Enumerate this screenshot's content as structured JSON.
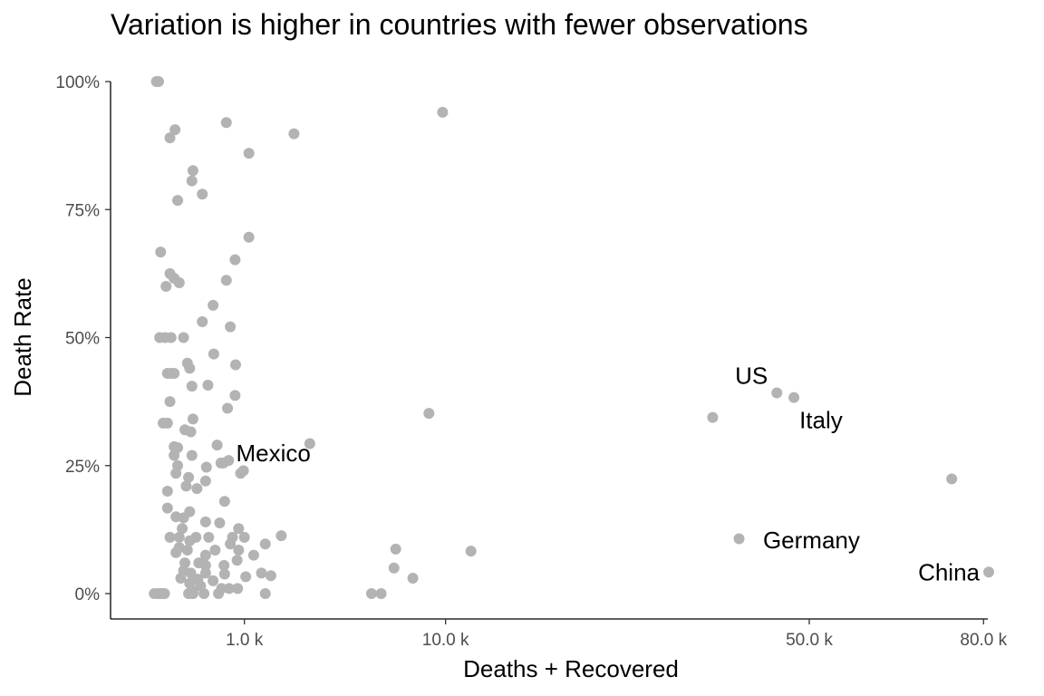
{
  "chart_data": {
    "type": "scatter",
    "title": "Variation is higher in countries with fewer observations",
    "xlabel": "Deaths + Recovered",
    "ylabel": "Death Rate",
    "x_scale": "sqrt",
    "xlim": [
      0,
      81200
    ],
    "ylim": [
      0,
      1
    ],
    "x_ticks": [
      {
        "value": 1000,
        "label": "1.0 k"
      },
      {
        "value": 10000,
        "label": "10.0 k"
      },
      {
        "value": 50000,
        "label": "50.0 k"
      },
      {
        "value": 80000,
        "label": "80.0 k"
      }
    ],
    "y_ticks": [
      {
        "value": 0,
        "label": "0%"
      },
      {
        "value": 0.25,
        "label": "25%"
      },
      {
        "value": 0.5,
        "label": "50%"
      },
      {
        "value": 0.75,
        "label": "75%"
      },
      {
        "value": 1.0,
        "label": "100%"
      }
    ],
    "grid": false,
    "point_color": "#b3b3b3",
    "points": [
      {
        "x": 3,
        "y": 1.0
      },
      {
        "x": 6,
        "y": 1.0
      },
      {
        "x": 650,
        "y": 0.92
      },
      {
        "x": 65,
        "y": 0.906
      },
      {
        "x": 40,
        "y": 0.89
      },
      {
        "x": 1100,
        "y": 0.86
      },
      {
        "x": 2350,
        "y": 0.898
      },
      {
        "x": 9800,
        "y": 0.94
      },
      {
        "x": 200,
        "y": 0.826
      },
      {
        "x": 190,
        "y": 0.806
      },
      {
        "x": 300,
        "y": 0.78
      },
      {
        "x": 80,
        "y": 0.768
      },
      {
        "x": 1100,
        "y": 0.696
      },
      {
        "x": 10,
        "y": 0.667
      },
      {
        "x": 810,
        "y": 0.652
      },
      {
        "x": 40,
        "y": 0.625
      },
      {
        "x": 60,
        "y": 0.616
      },
      {
        "x": 90,
        "y": 0.607
      },
      {
        "x": 25,
        "y": 0.6
      },
      {
        "x": 650,
        "y": 0.612
      },
      {
        "x": 440,
        "y": 0.563
      },
      {
        "x": 300,
        "y": 0.531
      },
      {
        "x": 720,
        "y": 0.521
      },
      {
        "x": 8,
        "y": 0.5
      },
      {
        "x": 22,
        "y": 0.5
      },
      {
        "x": 45,
        "y": 0.5
      },
      {
        "x": 120,
        "y": 0.5
      },
      {
        "x": 450,
        "y": 0.468
      },
      {
        "x": 150,
        "y": 0.45
      },
      {
        "x": 170,
        "y": 0.44
      },
      {
        "x": 820,
        "y": 0.447
      },
      {
        "x": 30,
        "y": 0.43
      },
      {
        "x": 45,
        "y": 0.43
      },
      {
        "x": 60,
        "y": 0.43
      },
      {
        "x": 190,
        "y": 0.405
      },
      {
        "x": 370,
        "y": 0.407
      },
      {
        "x": 810,
        "y": 0.387
      },
      {
        "x": 40,
        "y": 0.375
      },
      {
        "x": 670,
        "y": 0.362
      },
      {
        "x": 8900,
        "y": 0.352
      },
      {
        "x": 16,
        "y": 0.333
      },
      {
        "x": 30,
        "y": 0.333
      },
      {
        "x": 200,
        "y": 0.341
      },
      {
        "x": 130,
        "y": 0.32
      },
      {
        "x": 180,
        "y": 0.316
      },
      {
        "x": 80,
        "y": 0.285
      },
      {
        "x": 60,
        "y": 0.287
      },
      {
        "x": 500,
        "y": 0.29
      },
      {
        "x": 2900,
        "y": 0.293
      },
      {
        "x": 190,
        "y": 0.27
      },
      {
        "x": 60,
        "y": 0.27
      },
      {
        "x": 560,
        "y": 0.255
      },
      {
        "x": 690,
        "y": 0.26
      },
      {
        "x": 980,
        "y": 0.24
      },
      {
        "x": 80,
        "y": 0.25
      },
      {
        "x": 350,
        "y": 0.247
      },
      {
        "x": 70,
        "y": 0.235
      },
      {
        "x": 920,
        "y": 0.235
      },
      {
        "x": 160,
        "y": 0.227
      },
      {
        "x": 340,
        "y": 0.22
      },
      {
        "x": 140,
        "y": 0.21
      },
      {
        "x": 240,
        "y": 0.205
      },
      {
        "x": 30,
        "y": 0.2
      },
      {
        "x": 620,
        "y": 0.18
      },
      {
        "x": 30,
        "y": 0.167
      },
      {
        "x": 170,
        "y": 0.16
      },
      {
        "x": 70,
        "y": 0.15
      },
      {
        "x": 120,
        "y": 0.148
      },
      {
        "x": 340,
        "y": 0.14
      },
      {
        "x": 540,
        "y": 0.138
      },
      {
        "x": 110,
        "y": 0.127
      },
      {
        "x": 880,
        "y": 0.127
      },
      {
        "x": 40,
        "y": 0.11
      },
      {
        "x": 90,
        "y": 0.11
      },
      {
        "x": 170,
        "y": 0.103
      },
      {
        "x": 230,
        "y": 0.11
      },
      {
        "x": 380,
        "y": 0.11
      },
      {
        "x": 760,
        "y": 0.11
      },
      {
        "x": 1000,
        "y": 0.11
      },
      {
        "x": 1950,
        "y": 0.113
      },
      {
        "x": 1500,
        "y": 0.097
      },
      {
        "x": 720,
        "y": 0.097
      },
      {
        "x": 70,
        "y": 0.08
      },
      {
        "x": 90,
        "y": 0.09
      },
      {
        "x": 150,
        "y": 0.085
      },
      {
        "x": 470,
        "y": 0.085
      },
      {
        "x": 880,
        "y": 0.085
      },
      {
        "x": 1210,
        "y": 0.075
      },
      {
        "x": 340,
        "y": 0.075
      },
      {
        "x": 6900,
        "y": 0.087
      },
      {
        "x": 11800,
        "y": 0.083
      },
      {
        "x": 39900,
        "y": 0.107
      },
      {
        "x": 130,
        "y": 0.06
      },
      {
        "x": 260,
        "y": 0.06
      },
      {
        "x": 340,
        "y": 0.055
      },
      {
        "x": 610,
        "y": 0.055
      },
      {
        "x": 850,
        "y": 0.065
      },
      {
        "x": 120,
        "y": 0.045
      },
      {
        "x": 180,
        "y": 0.04
      },
      {
        "x": 340,
        "y": 0.04
      },
      {
        "x": 620,
        "y": 0.038
      },
      {
        "x": 1400,
        "y": 0.04
      },
      {
        "x": 1650,
        "y": 0.035
      },
      {
        "x": 1030,
        "y": 0.033
      },
      {
        "x": 6800,
        "y": 0.05
      },
      {
        "x": 7900,
        "y": 0.03
      },
      {
        "x": 100,
        "y": 0.03
      },
      {
        "x": 250,
        "y": 0.028
      },
      {
        "x": 440,
        "y": 0.025
      },
      {
        "x": 170,
        "y": 0.02
      },
      {
        "x": 280,
        "y": 0.015
      },
      {
        "x": 570,
        "y": 0.01
      },
      {
        "x": 700,
        "y": 0.01
      },
      {
        "x": 860,
        "y": 0.01
      },
      {
        "x": 200,
        "y": 0.005
      },
      {
        "x": 320,
        "y": 0.0
      },
      {
        "x": 1,
        "y": 0.0
      },
      {
        "x": 5,
        "y": 0.0
      },
      {
        "x": 9,
        "y": 0.0
      },
      {
        "x": 14,
        "y": 0.0
      },
      {
        "x": 20,
        "y": 0.0
      },
      {
        "x": 160,
        "y": 0.0
      },
      {
        "x": 200,
        "y": 0.0
      },
      {
        "x": 6100,
        "y": 0.0
      },
      {
        "x": 520,
        "y": 0.0
      },
      {
        "x": 5600,
        "y": 0.0
      },
      {
        "x": 1500,
        "y": 0.0
      }
    ],
    "labeled_points": [
      {
        "name": "US",
        "x": 45200,
        "y": 0.392,
        "label": "US",
        "anchor": "end",
        "dx": -10,
        "dy": -10
      },
      {
        "name": "Italy",
        "x": 47700,
        "y": 0.383,
        "label": "Italy",
        "anchor": "start",
        "dx": 6,
        "dy": 34
      },
      {
        "name": "Mexico",
        "x": 600,
        "y": 0.255,
        "label": "Mexico",
        "anchor": "start",
        "dx": 14,
        "dy": -2
      },
      {
        "name": "Germany",
        "x": 36400,
        "y": 0.344,
        "label": "",
        "anchor": "start",
        "dx": 0,
        "dy": 0
      },
      {
        "name": "Germany-label",
        "x": 58000,
        "y": 0.05,
        "label": "Germany",
        "anchor": "end",
        "dx": 0,
        "dy": -22
      },
      {
        "name": "Spain",
        "x": 74000,
        "y": 0.224,
        "label": "",
        "anchor": "start",
        "dx": 0,
        "dy": 0
      },
      {
        "name": "China",
        "x": 81000,
        "y": 0.042,
        "label": "China",
        "anchor": "end",
        "dx": -10,
        "dy": 9
      }
    ]
  }
}
